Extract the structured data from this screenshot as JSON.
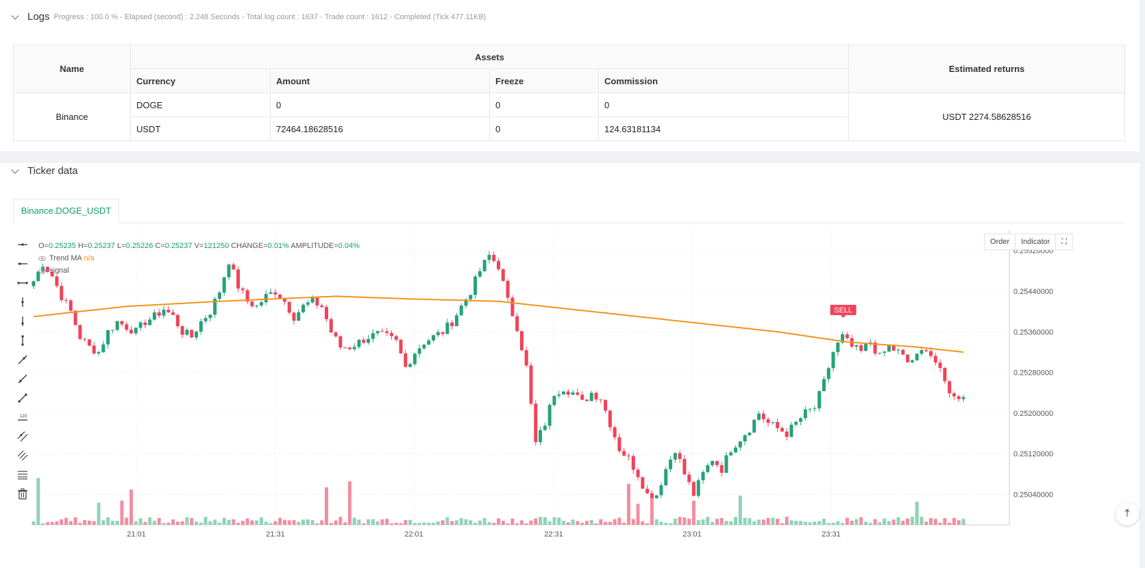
{
  "logs": {
    "title": "Logs",
    "meta": "Progress : 100.0 % - Elapsed (second) : 2.248  Seconds - Total log count : 1637 - Trade count : 1612 - Completed (Tick 477.11KB)",
    "headers": {
      "name": "Name",
      "assets": "Assets",
      "estimated": "Estimated returns",
      "currency": "Currency",
      "amount": "Amount",
      "freeze": "Freeze",
      "commission": "Commission"
    },
    "exchange": "Binance",
    "rows": [
      {
        "currency": "DOGE",
        "amount": "0",
        "freeze": "0",
        "commission": "0"
      },
      {
        "currency": "USDT",
        "amount": "72464.18628516",
        "freeze": "0",
        "commission": "124.63181134"
      }
    ],
    "estimated_returns": "USDT 2274.58628516"
  },
  "ticker": {
    "title": "Ticker data",
    "tab": "Binance.DOGE_USDT",
    "ohlc": {
      "o_label": "O=",
      "o": "0.25235",
      "h_label": "H=",
      "h": "0.25237",
      "l_label": "L=",
      "l": "0.25226",
      "c_label": "C=",
      "c": "0.25237",
      "v_label": "V=",
      "v": "121250",
      "change_label": "CHANGE=",
      "change": "0.01%",
      "amp_label": "AMPLITUDE=",
      "amp": "0.04%"
    },
    "indicators": {
      "trend_ma": "Trend MA",
      "trend_ma_value": "n/a",
      "signal": "signal"
    },
    "buttons": {
      "order": "Order",
      "indicator": "Indicator"
    },
    "tools": [
      "horizontal-line-icon",
      "horizontal-ray-icon",
      "extended-line-icon",
      "vertical-line-icon",
      "vertical-segment-icon",
      "vertical-ray-icon",
      "trend-line-icon",
      "ray-line-icon",
      "segment-icon",
      "price-label-icon",
      "parallel-channel-icon",
      "fib-channel-icon",
      "fib-retracement-icon",
      "trash-icon"
    ]
  },
  "chart_data": {
    "type": "candlestick",
    "symbol": "Binance.DOGE_USDT",
    "y_ticks": [
      "0.25520000",
      "0.25440000",
      "0.25360000",
      "0.25280000",
      "0.25200000",
      "0.25120000",
      "0.25040000"
    ],
    "ylim": [
      0.2498,
      0.2556
    ],
    "x_ticks": [
      "21:01",
      "21:31",
      "22:01",
      "22:31",
      "23:01",
      "23:31"
    ],
    "signal_label": "SELL",
    "grid": true,
    "colors": {
      "up": "#26a17b",
      "down": "#f0435a",
      "ma": "#f5921e",
      "volume_up": "#8fd3b6",
      "volume_down": "#f28ea0",
      "sell": "#f0435a"
    },
    "anchors_close": [
      [
        0,
        0.2546
      ],
      [
        4,
        0.25495
      ],
      [
        8,
        0.2547
      ],
      [
        12,
        0.2543
      ],
      [
        16,
        0.254
      ],
      [
        20,
        0.2535
      ],
      [
        24,
        0.2533
      ],
      [
        28,
        0.2532
      ],
      [
        32,
        0.2536
      ],
      [
        36,
        0.2538
      ],
      [
        40,
        0.2537
      ],
      [
        44,
        0.2536
      ],
      [
        48,
        0.2538
      ],
      [
        52,
        0.2539
      ],
      [
        56,
        0.25405
      ],
      [
        60,
        0.2539
      ],
      [
        64,
        0.2536
      ],
      [
        68,
        0.2535
      ],
      [
        72,
        0.2538
      ],
      [
        76,
        0.254
      ],
      [
        80,
        0.2544
      ],
      [
        84,
        0.255
      ],
      [
        88,
        0.2545
      ],
      [
        92,
        0.2542
      ],
      [
        96,
        0.2541
      ],
      [
        100,
        0.2543
      ],
      [
        104,
        0.2544
      ],
      [
        108,
        0.2542
      ],
      [
        112,
        0.2539
      ],
      [
        116,
        0.2541
      ],
      [
        120,
        0.2542
      ],
      [
        124,
        0.2541
      ],
      [
        128,
        0.2536
      ],
      [
        132,
        0.2533
      ],
      [
        136,
        0.2533
      ],
      [
        140,
        0.2534
      ],
      [
        144,
        0.2535
      ],
      [
        148,
        0.25355
      ],
      [
        152,
        0.2535
      ],
      [
        156,
        0.2534
      ],
      [
        160,
        0.2529
      ],
      [
        164,
        0.2532
      ],
      [
        168,
        0.2534
      ],
      [
        172,
        0.2535
      ],
      [
        176,
        0.2536
      ],
      [
        180,
        0.2538
      ],
      [
        184,
        0.2541
      ],
      [
        188,
        0.2544
      ],
      [
        192,
        0.2548
      ],
      [
        196,
        0.2551
      ],
      [
        200,
        0.2549
      ],
      [
        204,
        0.2542
      ],
      [
        208,
        0.2537
      ],
      [
        212,
        0.2529
      ],
      [
        216,
        0.2514
      ],
      [
        220,
        0.2518
      ],
      [
        224,
        0.2524
      ],
      [
        228,
        0.2525
      ],
      [
        232,
        0.2524
      ],
      [
        236,
        0.2522
      ],
      [
        240,
        0.2524
      ],
      [
        244,
        0.2523
      ],
      [
        248,
        0.2518
      ],
      [
        252,
        0.2513
      ],
      [
        256,
        0.2511
      ],
      [
        260,
        0.2508
      ],
      [
        264,
        0.2504
      ],
      [
        268,
        0.2504
      ],
      [
        272,
        0.2509
      ],
      [
        276,
        0.2513
      ],
      [
        280,
        0.2508
      ],
      [
        284,
        0.2504
      ],
      [
        288,
        0.2508
      ],
      [
        292,
        0.2511
      ],
      [
        296,
        0.2509
      ],
      [
        300,
        0.2513
      ],
      [
        304,
        0.2515
      ],
      [
        308,
        0.2517
      ],
      [
        312,
        0.252
      ],
      [
        316,
        0.2518
      ],
      [
        320,
        0.2517
      ],
      [
        324,
        0.2516
      ],
      [
        328,
        0.2518
      ],
      [
        332,
        0.252
      ],
      [
        336,
        0.2521
      ],
      [
        340,
        0.2526
      ],
      [
        344,
        0.2532
      ],
      [
        348,
        0.2535
      ],
      [
        352,
        0.2533
      ],
      [
        356,
        0.2532
      ],
      [
        360,
        0.2534
      ],
      [
        364,
        0.2531
      ],
      [
        368,
        0.2533
      ],
      [
        372,
        0.2532
      ],
      [
        376,
        0.253
      ],
      [
        380,
        0.2531
      ],
      [
        384,
        0.2533
      ],
      [
        388,
        0.253
      ],
      [
        392,
        0.2526
      ],
      [
        396,
        0.2523
      ],
      [
        400,
        0.25237
      ]
    ],
    "ma_anchors": [
      [
        0,
        0.2539
      ],
      [
        40,
        0.2541
      ],
      [
        80,
        0.2542
      ],
      [
        130,
        0.2543
      ],
      [
        160,
        0.25425
      ],
      [
        200,
        0.2542
      ],
      [
        240,
        0.254
      ],
      [
        280,
        0.2538
      ],
      [
        320,
        0.2536
      ],
      [
        350,
        0.2534
      ],
      [
        380,
        0.2533
      ],
      [
        400,
        0.2532
      ]
    ]
  }
}
